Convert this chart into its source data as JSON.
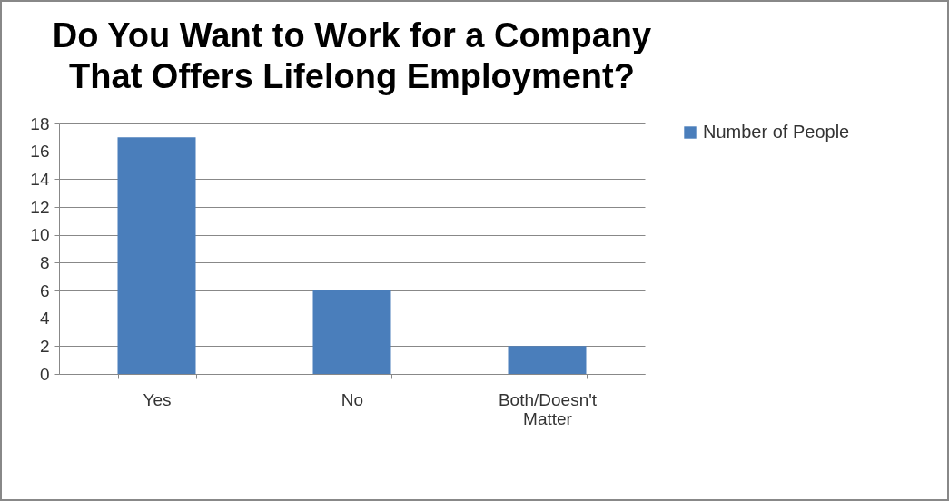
{
  "chart_data": {
    "type": "bar",
    "title": "Do You Want to Work for a Company That Offers Lifelong Employment?",
    "categories": [
      "Yes",
      "No",
      "Both/Doesn't Matter"
    ],
    "series": [
      {
        "name": "Number of People",
        "color": "#4a7ebb",
        "values": [
          17,
          6,
          2
        ]
      }
    ],
    "ylim": [
      0,
      18
    ],
    "yticks": [
      0,
      2,
      4,
      6,
      8,
      10,
      12,
      14,
      16,
      18
    ],
    "grid": "y",
    "legend": "right"
  }
}
